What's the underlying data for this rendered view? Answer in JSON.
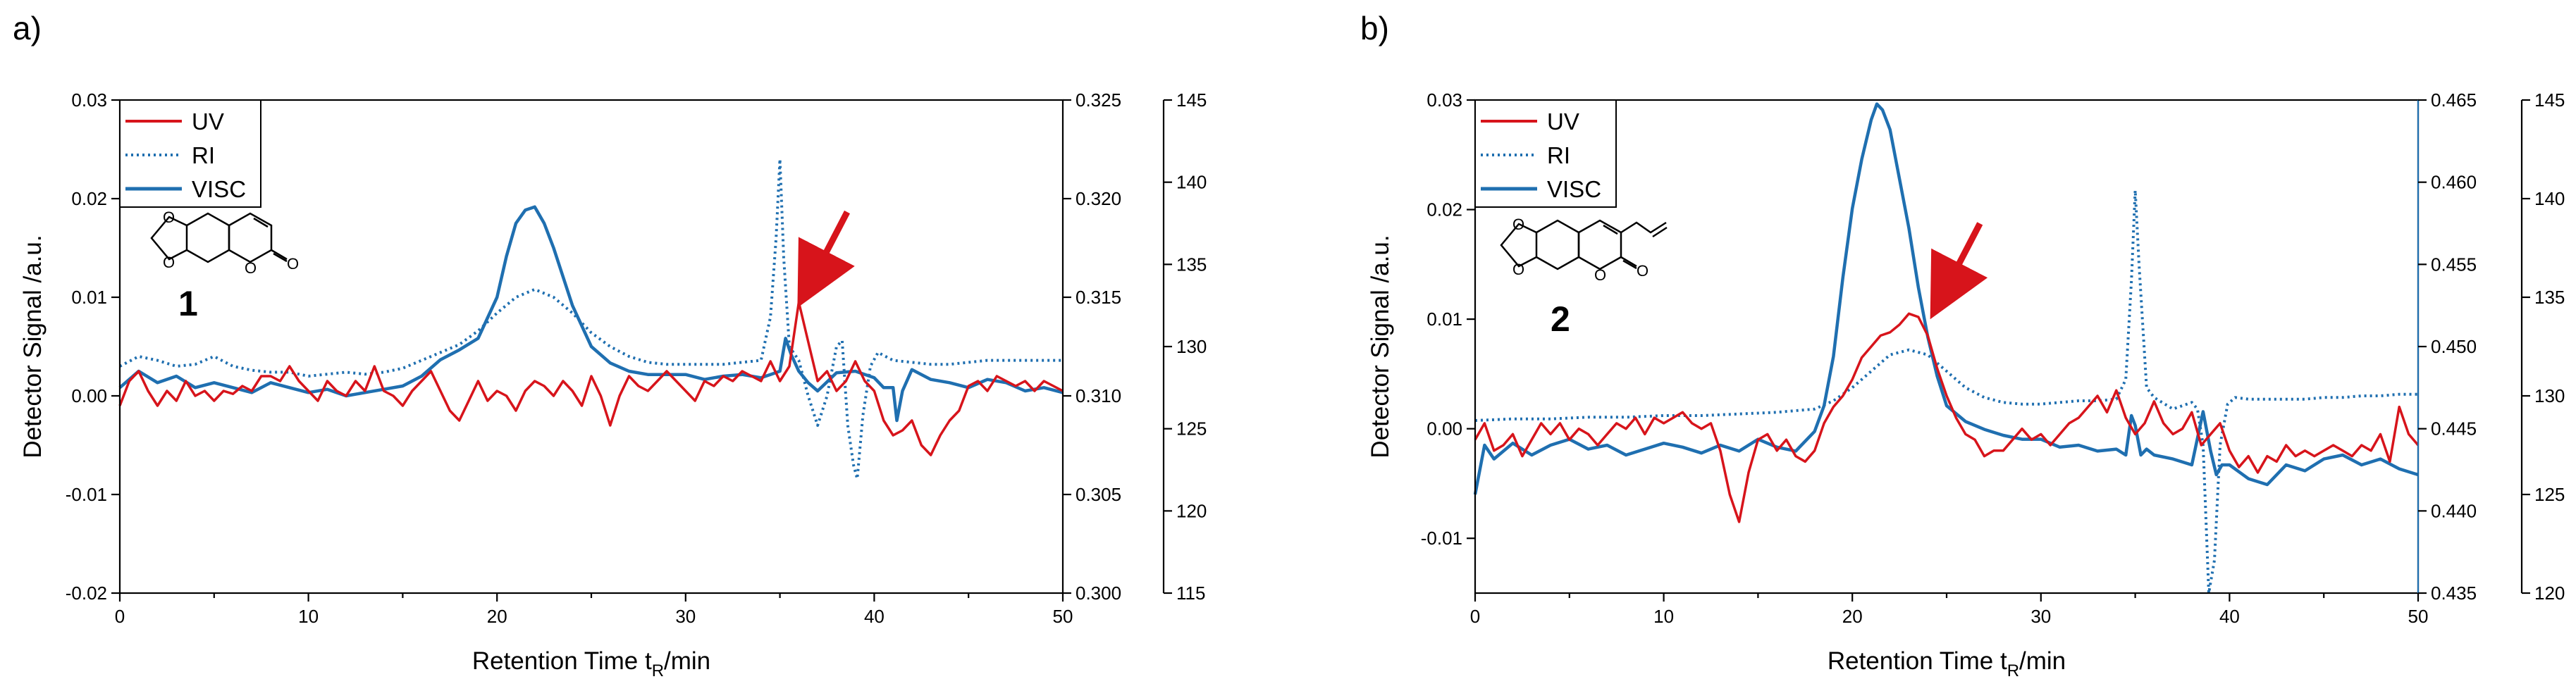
{
  "colors": {
    "uv": "#d7141b",
    "ri": "#1f6fb0",
    "visc": "#1f6fb0",
    "arrow": "#d7141b",
    "axis": "#000000"
  },
  "chart_data": [
    {
      "type": "line",
      "panel_label": "a)",
      "compound_number": "1",
      "xlabel": "Retention Time t",
      "xlabel_subscript": "R",
      "xlabel_suffix": "/min",
      "ylabel": "Detector Signal /a.u.",
      "xlim": [
        0,
        50
      ],
      "xticks": [
        "0",
        "10",
        "20",
        "30",
        "40",
        "50"
      ],
      "ylim_left": [
        -0.02,
        0.03
      ],
      "yticks_left": [
        "-0.02",
        "-0.01",
        "0.00",
        "0.01",
        "0.02",
        "0.03"
      ],
      "ylim_right1": [
        0.3,
        0.325
      ],
      "yticks_right1": [
        "0.300",
        "0.305",
        "0.310",
        "0.315",
        "0.320",
        "0.325"
      ],
      "ylim_right2": [
        115,
        145
      ],
      "yticks_right2": [
        "115",
        "120",
        "125",
        "130",
        "135",
        "140",
        "145"
      ],
      "legend": [
        "UV",
        "RI",
        "VISC"
      ],
      "arrow_target": [
        35.8,
        0.0095
      ],
      "series": [
        {
          "name": "UV",
          "axis": "left",
          "style": "solid",
          "x": [
            0,
            0.5,
            1,
            1.5,
            2,
            2.5,
            3,
            3.5,
            4,
            4.5,
            5,
            5.5,
            6,
            6.5,
            7,
            7.5,
            8,
            8.5,
            9,
            9.5,
            10,
            10.5,
            11,
            11.5,
            12,
            12.5,
            13,
            13.5,
            14,
            14.5,
            15,
            15.5,
            16,
            16.5,
            17,
            17.5,
            18,
            18.5,
            19,
            19.5,
            20,
            20.5,
            21,
            21.5,
            22,
            22.5,
            23,
            23.5,
            24,
            24.5,
            25,
            25.5,
            26,
            26.5,
            27,
            27.5,
            28,
            28.5,
            29,
            29.5,
            30,
            30.5,
            31,
            31.5,
            32,
            32.5,
            33,
            33.5,
            34,
            34.5,
            35,
            35.5,
            36,
            36.5,
            37,
            37.5,
            38,
            38.5,
            39,
            39.5,
            40,
            40.5,
            41,
            41.5,
            42,
            42.5,
            43,
            43.5,
            44,
            44.5,
            45,
            45.5,
            46,
            46.5,
            47,
            47.5,
            48,
            48.5,
            49,
            49.5,
            50
          ],
          "y": [
            -0.001,
            0.0015,
            0.0025,
            0.0005,
            -0.001,
            0.0005,
            -0.0005,
            0.0015,
            0.0,
            0.0005,
            -0.0005,
            0.0005,
            0.0002,
            0.001,
            0.0005,
            0.002,
            0.002,
            0.0015,
            0.003,
            0.0015,
            0.0005,
            -0.0005,
            0.0015,
            0.0005,
            0.0,
            0.0015,
            0.0005,
            0.003,
            0.0005,
            0.0,
            -0.001,
            0.0005,
            0.0015,
            0.0025,
            0.0005,
            -0.0015,
            -0.0025,
            -0.0005,
            0.0015,
            -0.0005,
            0.0005,
            0.0,
            -0.0015,
            0.0005,
            0.0015,
            0.001,
            0.0,
            0.0015,
            0.0005,
            -0.001,
            0.002,
            0.0,
            -0.003,
            0.0,
            0.002,
            0.001,
            0.0005,
            0.0015,
            0.0025,
            0.0015,
            0.0005,
            -0.0005,
            0.0015,
            0.001,
            0.002,
            0.0015,
            0.0025,
            0.002,
            0.0015,
            0.0035,
            0.0015,
            0.003,
            0.0095,
            0.0055,
            0.0015,
            0.0025,
            0.0005,
            0.0015,
            0.0035,
            0.0015,
            0.0005,
            -0.0025,
            -0.004,
            -0.0035,
            -0.0025,
            -0.005,
            -0.006,
            -0.004,
            -0.0025,
            -0.0015,
            0.001,
            0.0015,
            0.0005,
            0.002,
            0.0015,
            0.001,
            0.0015,
            0.0005,
            0.0015,
            0.001,
            0.0005
          ]
        },
        {
          "name": "RI",
          "axis": "right1",
          "style": "dotted",
          "x": [
            0,
            1,
            2,
            3,
            4,
            5,
            6,
            7,
            8,
            9,
            10,
            11,
            12,
            13,
            14,
            15,
            16,
            17,
            18,
            19,
            20,
            21,
            22,
            23,
            24,
            25,
            26,
            27,
            28,
            29,
            30,
            31,
            32,
            33,
            34,
            34.5,
            34.8,
            35,
            35.2,
            35.5,
            36,
            36.5,
            37,
            37.5,
            38,
            38.3,
            38.6,
            38.9,
            39.1,
            39.4,
            39.8,
            40.2,
            41,
            42,
            43,
            44,
            45,
            46,
            47,
            48,
            49,
            50
          ],
          "y": [
            0.3115,
            0.312,
            0.3118,
            0.3115,
            0.3116,
            0.312,
            0.3115,
            0.3113,
            0.3112,
            0.3112,
            0.311,
            0.3111,
            0.3112,
            0.3111,
            0.3112,
            0.3114,
            0.3118,
            0.3122,
            0.3126,
            0.3133,
            0.3142,
            0.315,
            0.3154,
            0.315,
            0.3142,
            0.3132,
            0.3125,
            0.312,
            0.3117,
            0.3116,
            0.3116,
            0.3116,
            0.3116,
            0.3117,
            0.3118,
            0.314,
            0.318,
            0.322,
            0.317,
            0.3125,
            0.3118,
            0.31,
            0.3085,
            0.31,
            0.3125,
            0.3128,
            0.3085,
            0.3065,
            0.3058,
            0.309,
            0.3115,
            0.3122,
            0.3118,
            0.3117,
            0.3116,
            0.3116,
            0.3117,
            0.3118,
            0.3118,
            0.3118,
            0.3118,
            0.3118
          ]
        },
        {
          "name": "VISC",
          "axis": "right2",
          "style": "solid",
          "x": [
            0,
            1,
            2,
            3,
            4,
            5,
            6,
            7,
            8,
            9,
            10,
            11,
            12,
            13,
            14,
            15,
            16,
            17,
            18,
            19,
            20,
            20.5,
            21,
            21.5,
            22,
            22.5,
            23,
            24,
            25,
            26,
            27,
            28,
            29,
            30,
            31,
            32,
            33,
            34,
            34.5,
            35,
            35.3,
            35.6,
            36,
            36.5,
            37,
            38,
            39,
            40,
            40.5,
            41,
            41.2,
            41.5,
            42,
            43,
            44,
            45,
            46,
            47,
            48,
            49,
            50
          ],
          "y": [
            127.5,
            128.5,
            127.8,
            128.2,
            127.5,
            127.8,
            127.5,
            127.2,
            127.8,
            127.5,
            127.2,
            127.4,
            127.0,
            127.2,
            127.4,
            127.6,
            128.2,
            129.2,
            129.8,
            130.5,
            133.0,
            135.5,
            137.5,
            138.3,
            138.5,
            137.5,
            136.0,
            132.5,
            130.0,
            129.0,
            128.5,
            128.3,
            128.3,
            128.3,
            128.0,
            128.2,
            128.3,
            128.1,
            128.3,
            128.5,
            130.5,
            129.5,
            128.5,
            127.8,
            127.3,
            128.4,
            128.5,
            128.1,
            127.5,
            127.5,
            125.5,
            127.3,
            128.6,
            128.0,
            127.8,
            127.5,
            128.0,
            127.8,
            127.3,
            127.5,
            127.2
          ]
        }
      ]
    },
    {
      "type": "line",
      "panel_label": "b)",
      "compound_number": "2",
      "xlabel": "Retention Time t",
      "xlabel_subscript": "R",
      "xlabel_suffix": "/min",
      "ylabel": "Detector Signal /a.u.",
      "xlim": [
        0,
        50
      ],
      "xticks": [
        "0",
        "10",
        "20",
        "30",
        "40",
        "50"
      ],
      "ylim_left": [
        -0.015,
        0.03
      ],
      "yticks_left": [
        "-0.01",
        "0.00",
        "0.01",
        "0.02",
        "0.03"
      ],
      "ylim_right1": [
        0.435,
        0.465
      ],
      "yticks_right1": [
        "0.435",
        "0.440",
        "0.445",
        "0.450",
        "0.455",
        "0.460",
        "0.465"
      ],
      "ylim_right2": [
        120,
        145
      ],
      "yticks_right2": [
        "120",
        "125",
        "130",
        "135",
        "140",
        "145"
      ],
      "legend": [
        "UV",
        "RI",
        "VISC"
      ],
      "arrow_target": [
        24.0,
        0.0105
      ],
      "series": [
        {
          "name": "UV",
          "axis": "left",
          "style": "solid",
          "x": [
            0,
            0.5,
            1,
            1.5,
            2,
            2.5,
            3,
            3.5,
            4,
            4.5,
            5,
            5.5,
            6,
            6.5,
            7,
            7.5,
            8,
            8.5,
            9,
            9.5,
            10,
            10.5,
            11,
            11.5,
            12,
            12.5,
            13,
            13.5,
            14,
            14.5,
            15,
            15.5,
            16,
            16.5,
            17,
            17.5,
            18,
            18.5,
            19,
            19.5,
            20,
            20.5,
            21,
            21.5,
            22,
            22.5,
            23,
            23.5,
            24,
            24.5,
            25,
            25.5,
            26,
            26.5,
            27,
            27.5,
            28,
            28.5,
            29,
            29.5,
            30,
            30.5,
            31,
            31.5,
            32,
            32.5,
            33,
            33.5,
            34,
            34.5,
            35,
            35.5,
            36,
            36.5,
            37,
            37.5,
            38,
            38.5,
            39,
            39.5,
            40,
            40.5,
            41,
            41.5,
            42,
            42.5,
            43,
            43.5,
            44,
            44.5,
            45,
            45.5,
            46,
            46.5,
            47,
            47.5,
            48,
            48.5,
            49,
            49.5,
            50
          ],
          "y": [
            -0.001,
            0.0005,
            -0.002,
            -0.0015,
            -0.0005,
            -0.0025,
            -0.001,
            0.0005,
            -0.0005,
            0.0005,
            -0.001,
            0.0,
            -0.0005,
            -0.0015,
            -0.0005,
            0.0005,
            0.0,
            0.001,
            -0.0005,
            0.001,
            0.0005,
            0.001,
            0.0015,
            0.0005,
            0.0,
            0.0005,
            -0.002,
            -0.006,
            -0.0085,
            -0.004,
            -0.001,
            -0.0005,
            -0.002,
            -0.001,
            -0.0025,
            -0.003,
            -0.002,
            0.0005,
            0.002,
            0.003,
            0.0045,
            0.0065,
            0.0075,
            0.0085,
            0.0088,
            0.0095,
            0.0105,
            0.0102,
            0.0085,
            0.0055,
            0.003,
            0.001,
            -0.0005,
            -0.001,
            -0.0025,
            -0.002,
            -0.002,
            -0.001,
            0.0,
            -0.001,
            -0.0005,
            -0.0015,
            -0.0005,
            0.0005,
            0.001,
            0.002,
            0.003,
            0.0015,
            0.0035,
            0.001,
            -0.0005,
            0.0005,
            0.0025,
            0.0005,
            -0.0005,
            0.0,
            0.0015,
            -0.0015,
            -0.0005,
            0.0005,
            -0.002,
            -0.0035,
            -0.0025,
            -0.004,
            -0.0025,
            -0.003,
            -0.0015,
            -0.0025,
            -0.002,
            -0.0025,
            -0.002,
            -0.0015,
            -0.002,
            -0.0025,
            -0.0015,
            -0.002,
            -0.0005,
            -0.003,
            0.002,
            -0.0005,
            -0.0015
          ]
        },
        {
          "name": "RI",
          "axis": "right1",
          "style": "dotted",
          "x": [
            0,
            2,
            4,
            6,
            8,
            10,
            12,
            14,
            16,
            18,
            19,
            20,
            21,
            22,
            23,
            24,
            25,
            26,
            27,
            28,
            29,
            30,
            31,
            32,
            33,
            34,
            34.5,
            34.8,
            35,
            35.2,
            35.6,
            36,
            37,
            38,
            38.3,
            38.6,
            38.9,
            39.2,
            39.5,
            39.9,
            40.3,
            41,
            42,
            43,
            44,
            45,
            46,
            47,
            48,
            49,
            50
          ],
          "y": [
            0.4455,
            0.4456,
            0.4456,
            0.4457,
            0.4457,
            0.4458,
            0.4458,
            0.4459,
            0.446,
            0.4462,
            0.4467,
            0.4475,
            0.4485,
            0.4495,
            0.4498,
            0.4495,
            0.4485,
            0.4475,
            0.4469,
            0.4466,
            0.4465,
            0.4465,
            0.4466,
            0.4467,
            0.4467,
            0.4468,
            0.448,
            0.454,
            0.4595,
            0.455,
            0.4475,
            0.4469,
            0.4462,
            0.4466,
            0.4462,
            0.444,
            0.435,
            0.437,
            0.444,
            0.4465,
            0.4469,
            0.4468,
            0.4468,
            0.4468,
            0.4468,
            0.4469,
            0.4469,
            0.447,
            0.447,
            0.4471,
            0.4471
          ]
        },
        {
          "name": "VISC",
          "axis": "right2",
          "style": "solid",
          "x": [
            0,
            0.5,
            1,
            2,
            3,
            4,
            5,
            6,
            7,
            8,
            9,
            10,
            11,
            12,
            13,
            14,
            15,
            16,
            17,
            18,
            18.5,
            19,
            19.5,
            20,
            20.5,
            21,
            21.3,
            21.6,
            22,
            22.5,
            23,
            23.5,
            24,
            24.5,
            25,
            26,
            27,
            28,
            29,
            30,
            31,
            32,
            33,
            34,
            34.5,
            34.8,
            35,
            35.3,
            35.6,
            36,
            37,
            38,
            38.6,
            39,
            39.3,
            39.6,
            40,
            41,
            42,
            43,
            44,
            45,
            46,
            47,
            48,
            49,
            50
          ],
          "y": [
            125.0,
            127.5,
            126.8,
            127.6,
            127.0,
            127.5,
            127.8,
            127.3,
            127.5,
            127.0,
            127.3,
            127.6,
            127.4,
            127.1,
            127.5,
            127.2,
            127.8,
            127.4,
            127.2,
            128.2,
            129.5,
            132.0,
            136.0,
            139.5,
            142.0,
            144.0,
            144.8,
            144.5,
            143.5,
            141.0,
            138.5,
            135.5,
            133.0,
            131.0,
            129.5,
            128.7,
            128.3,
            128.0,
            127.8,
            127.8,
            127.4,
            127.5,
            127.2,
            127.3,
            127.0,
            129.0,
            128.5,
            127.0,
            127.3,
            127.0,
            126.8,
            126.5,
            129.2,
            127.2,
            126.0,
            126.5,
            126.5,
            125.8,
            125.5,
            126.5,
            126.2,
            126.8,
            127.0,
            126.5,
            126.8,
            126.3,
            126.0
          ]
        }
      ]
    }
  ]
}
